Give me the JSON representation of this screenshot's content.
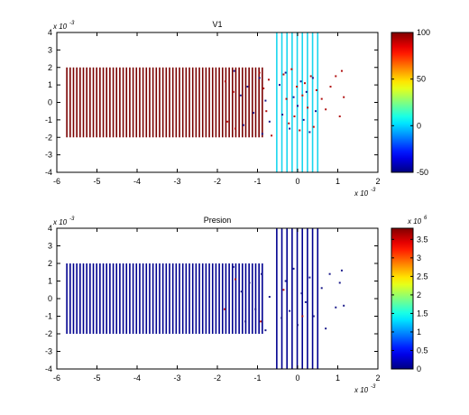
{
  "chart_data": [
    {
      "type": "scatter",
      "title": "V1",
      "xlim": [
        -6,
        2
      ],
      "ylim": [
        -4,
        4
      ],
      "x_ticks": [
        -6,
        -5,
        -4,
        -3,
        -2,
        -1,
        0,
        1,
        2
      ],
      "y_ticks": [
        -4,
        -3,
        -2,
        -1,
        0,
        1,
        2,
        3,
        4
      ],
      "x_multiplier": "x 10",
      "x_exponent": "-3",
      "y_multiplier": "x 10",
      "y_exponent": "-3",
      "grid": false,
      "colorbar": {
        "colormap": "jet",
        "limits": [
          -50,
          100
        ],
        "tick_labels": [
          "100",
          "50",
          "0",
          "-50"
        ],
        "tick_values": [
          100,
          50,
          0,
          -50
        ]
      },
      "regions": [
        {
          "x_start": -5.75,
          "x_end": -0.88,
          "y_min": -2,
          "y_max": 2,
          "count": 60,
          "color": "#7a0000"
        },
        {
          "x_start": -0.52,
          "x_end": 0.5,
          "y_min": -4,
          "y_max": 4,
          "count": 9,
          "color": "#19d6ee"
        }
      ],
      "scatter_points": {
        "color": "#b01010",
        "x": [
          -1.8,
          -1.75,
          -1.6,
          -1.55,
          -0.95,
          -0.85,
          -0.78,
          -0.72,
          -0.65,
          -0.35,
          -0.28,
          -0.22,
          -0.15,
          -0.08,
          -0.02,
          0.05,
          0.12,
          0.18,
          0.25,
          0.33,
          0.4,
          0.47,
          0.6,
          0.7,
          0.82,
          0.95,
          1.05,
          1.1,
          1.15
        ],
        "y": [
          1.2,
          -1.1,
          0.6,
          -1.5,
          1.7,
          0.8,
          -0.5,
          1.3,
          -1.9,
          1.6,
          0.2,
          -1.2,
          1.9,
          -0.8,
          0.9,
          -1.6,
          0.4,
          1.1,
          -0.3,
          1.5,
          -1.4,
          0.7,
          0.2,
          -0.4,
          0.9,
          1.5,
          -0.8,
          1.8,
          0.3
        ]
      },
      "blue_points": {
        "color": "#1a1a8a",
        "x": [
          -1.58,
          -1.42,
          -1.35,
          -1.25,
          -1.1,
          -0.95,
          -0.88,
          -0.8,
          -0.7,
          -0.45,
          -0.38,
          -0.3,
          -0.2,
          -0.1,
          0.0,
          0.08,
          0.15,
          0.22,
          0.3,
          0.38,
          0.45
        ],
        "y": [
          1.8,
          0.4,
          -1.3,
          0.9,
          -0.6,
          1.4,
          -1.8,
          0.1,
          -1.1,
          1.0,
          -0.7,
          1.7,
          -1.5,
          0.3,
          -0.2,
          1.2,
          -1.0,
          0.6,
          -1.7,
          1.4,
          -0.5
        ]
      }
    },
    {
      "type": "scatter",
      "title": "Presion",
      "xlim": [
        -6,
        2
      ],
      "ylim": [
        -4,
        4
      ],
      "x_ticks": [
        -6,
        -5,
        -4,
        -3,
        -2,
        -1,
        0,
        1,
        2
      ],
      "y_ticks": [
        -4,
        -3,
        -2,
        -1,
        0,
        1,
        2,
        3,
        4
      ],
      "x_multiplier": "x 10",
      "x_exponent": "-3",
      "y_multiplier": "x 10",
      "y_exponent": "-3",
      "grid": false,
      "colorbar": {
        "colormap": "jet",
        "limits": [
          0,
          3.8
        ],
        "tick_labels": [
          "3.5",
          "3",
          "2.5",
          "2",
          "1.5",
          "1",
          "0.5",
          "0"
        ],
        "tick_values": [
          3.5,
          3,
          2.5,
          2,
          1.5,
          1,
          0.5,
          0
        ],
        "multiplier": "x 10",
        "exponent": "6"
      },
      "regions": [
        {
          "x_start": -5.75,
          "x_end": -0.88,
          "y_min": -2,
          "y_max": 2,
          "count": 60,
          "color": "#00008f"
        },
        {
          "x_start": -0.52,
          "x_end": 0.5,
          "y_min": -4,
          "y_max": 4,
          "count": 9,
          "color": "#00008f"
        }
      ],
      "scatter_points": {
        "color": "#b01010",
        "x": [
          -1.82,
          -1.55,
          -0.92,
          -0.35,
          0.12
        ],
        "y": [
          -0.6,
          1.1,
          -1.3,
          0.5,
          -1.0
        ]
      },
      "blue_points": {
        "color": "#1a1a8a",
        "x": [
          -1.6,
          -1.4,
          -1.3,
          -1.2,
          -1.05,
          -0.9,
          -0.8,
          -0.7,
          -0.4,
          -0.3,
          -0.2,
          -0.1,
          0.0,
          0.1,
          0.2,
          0.3,
          0.4,
          0.6,
          0.7,
          0.8,
          0.95,
          1.05,
          1.1,
          1.15
        ],
        "y": [
          1.8,
          0.4,
          -1.3,
          0.9,
          -0.6,
          1.4,
          -1.8,
          0.1,
          -1.1,
          1.0,
          -0.7,
          1.7,
          -1.5,
          0.3,
          -0.2,
          1.2,
          -1.0,
          0.6,
          -1.7,
          1.4,
          -0.5,
          0.9,
          1.6,
          -0.4
        ]
      }
    }
  ]
}
